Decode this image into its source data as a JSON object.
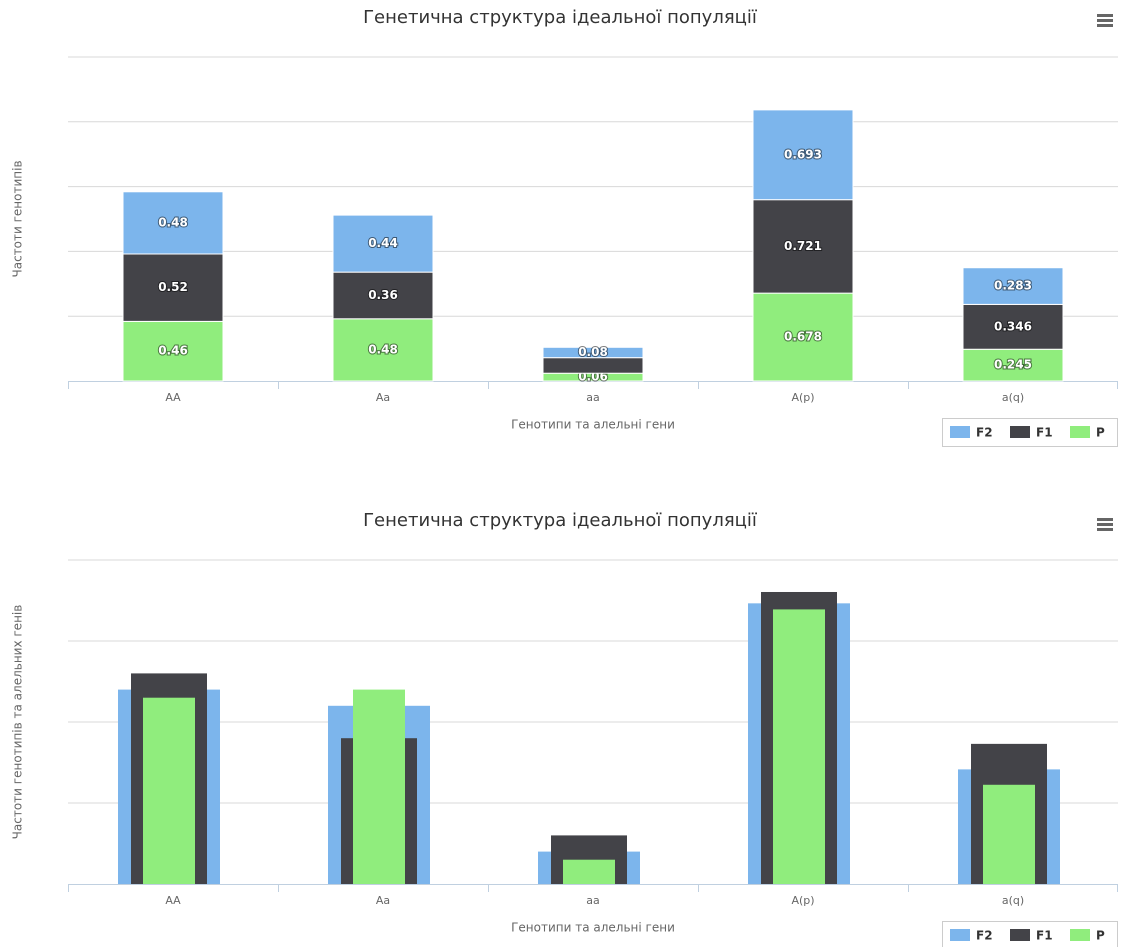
{
  "chart_data": [
    {
      "type": "stacked_bar",
      "title": "Генетична структура ідеальної популяції",
      "x_label": "Генотипи та алельні гени",
      "y_label": "Частоти генотипів",
      "categories": [
        "AA",
        "Aa",
        "aa",
        "A(p)",
        "a(q)"
      ],
      "series": [
        {
          "name": "F2",
          "color": "#7cb5ec",
          "values": [
            0.48,
            0.44,
            0.08,
            0.693,
            0.283
          ]
        },
        {
          "name": "F1",
          "color": "#434348",
          "values": [
            0.52,
            0.36,
            0.12,
            0.721,
            0.346
          ]
        },
        {
          "name": "P",
          "color": "#90ed7d",
          "values": [
            0.46,
            0.48,
            0.06,
            0.678,
            0.245
          ]
        }
      ],
      "ylim": [
        0,
        2.5
      ],
      "yticks": [
        0,
        0.5,
        1,
        1.5,
        2,
        2.5
      ],
      "grid": true,
      "data_labels": true,
      "legend": "bottom-right"
    },
    {
      "type": "overlapped_bar",
      "title": "Генетична структура ідеальної популяції",
      "x_label": "Генотипи та алельні гени",
      "y_label": "Частоти генотипів та алельних генів",
      "categories": [
        "AA",
        "Aa",
        "aa",
        "A(p)",
        "a(q)"
      ],
      "series": [
        {
          "name": "F2",
          "color": "#7cb5ec",
          "values": [
            0.48,
            0.44,
            0.08,
            0.693,
            0.283
          ]
        },
        {
          "name": "F1",
          "color": "#434348",
          "values": [
            0.52,
            0.36,
            0.12,
            0.721,
            0.346
          ]
        },
        {
          "name": "P",
          "color": "#90ed7d",
          "values": [
            0.46,
            0.48,
            0.06,
            0.678,
            0.245
          ]
        }
      ],
      "ylim": [
        0,
        0.8
      ],
      "yticks": [
        0,
        0.2,
        0.4,
        0.6,
        0.8
      ],
      "grid": true,
      "data_labels": false,
      "legend": "bottom-right"
    }
  ]
}
